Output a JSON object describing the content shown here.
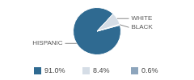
{
  "chart_data": {
    "type": "pie",
    "categories": [
      "HISPANIC",
      "WHITE",
      "BLACK"
    ],
    "values": [
      91.0,
      8.4,
      0.6
    ],
    "value_labels": [
      "91.0%",
      "8.4%",
      "0.6%"
    ],
    "colors": [
      "#2f6a91",
      "#d5dde6",
      "#8da5bc"
    ],
    "legend": "bottom"
  }
}
